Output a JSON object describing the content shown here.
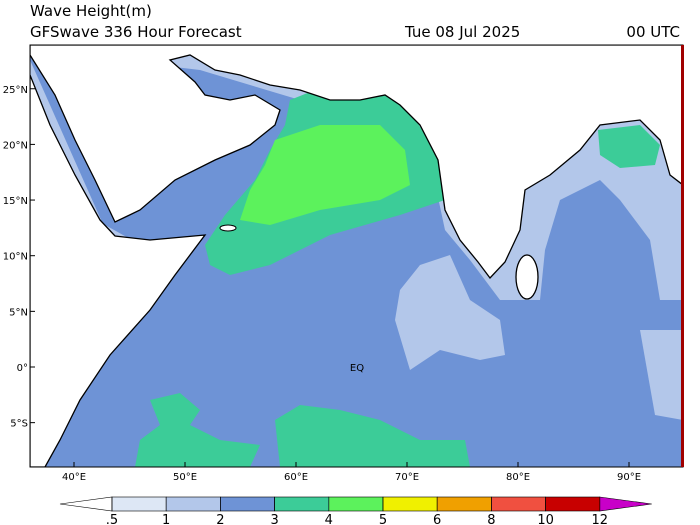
{
  "header": {
    "title": "Wave Height(m)",
    "subtitle": "GFSwave 336 Hour Forecast",
    "date": "Tue 08 Jul 2025",
    "time": "00 UTC"
  },
  "map": {
    "equator_label": "EQ",
    "lat_ticks": [
      {
        "value": 25,
        "label": "25°N"
      },
      {
        "value": 20,
        "label": "20°N"
      },
      {
        "value": 15,
        "label": "15°N"
      },
      {
        "value": 10,
        "label": "10°N"
      },
      {
        "value": 5,
        "label": "5°N"
      },
      {
        "value": 0,
        "label": "0°"
      },
      {
        "value": -5,
        "label": "5°S"
      }
    ],
    "lon_ticks": [
      {
        "value": 40,
        "label": "40°E"
      },
      {
        "value": 50,
        "label": "50°E"
      },
      {
        "value": 60,
        "label": "60°E"
      },
      {
        "value": 70,
        "label": "70°E"
      },
      {
        "value": 80,
        "label": "80°E"
      },
      {
        "value": 90,
        "label": "90°E"
      }
    ]
  },
  "colorbar": {
    "levels": [
      {
        "value": 0.5,
        "label": ".5"
      },
      1,
      2,
      3,
      4,
      5,
      6,
      8,
      10,
      12
    ],
    "colors": [
      "#ffffff",
      "#dde7f5",
      "#b3c7ea",
      "#6e93d6",
      "#3ccc98",
      "#5cf25c",
      "#f0f000",
      "#f0a000",
      "#f05040",
      "#c80000",
      "#c800c8"
    ]
  }
}
